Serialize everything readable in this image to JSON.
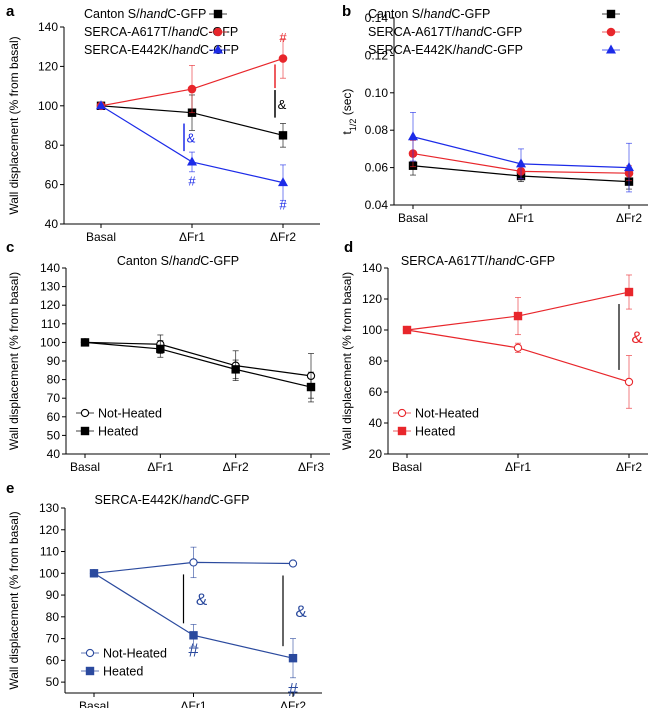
{
  "chart_data": [
    {
      "panel": "a",
      "type": "line",
      "title": "",
      "xlabel": "",
      "ylabel": "Wall displacement (% from basal)",
      "categories": [
        "Basal",
        "ΔFr1",
        "ΔFr2"
      ],
      "ylim": [
        40,
        140
      ],
      "yticks": [
        40,
        60,
        80,
        100,
        120,
        140
      ],
      "legend_position": "top-left",
      "series": [
        {
          "name": "Canton S/handC-GFP",
          "name_pre": "Canton S/",
          "name_em": "hand",
          "name_post": "C-GFP",
          "color": "#000000",
          "marker": "square",
          "values": [
            100,
            96.5,
            85
          ],
          "errors": [
            0,
            9,
            6
          ]
        },
        {
          "name": "SERCA-A617T/handC-GFP",
          "name_pre": "SERCA-A617T/",
          "name_em": "hand",
          "name_post": "C-GFP",
          "color": "#e8262b",
          "marker": "circle",
          "values": [
            100,
            108.5,
            124
          ],
          "errors": [
            0,
            12,
            10
          ]
        },
        {
          "name": "SERCA-E442K/handC-GFP",
          "name_pre": "SERCA-E442K/",
          "name_em": "hand",
          "name_post": "C-GFP",
          "color": "#1c2be8",
          "marker": "triangle",
          "values": [
            100,
            71.5,
            61
          ],
          "errors": [
            0,
            5,
            9
          ]
        }
      ],
      "annotations": [
        {
          "text": "#",
          "color": "#e8262b",
          "category": "ΔFr2",
          "value": 135
        },
        {
          "text": "&",
          "color": "#000000",
          "category": "ΔFr2",
          "value": 101
        },
        {
          "text": "&",
          "color": "#1c2be8",
          "category": "ΔFr1",
          "value": 84
        },
        {
          "text": "#",
          "color": "#1c2be8",
          "category": "ΔFr1",
          "value": 62
        },
        {
          "text": "#",
          "color": "#1c2be8",
          "category": "ΔFr2",
          "value": 50
        }
      ]
    },
    {
      "panel": "b",
      "type": "line",
      "title": "",
      "xlabel": "",
      "ylabel": "t1/2 (sec)",
      "ylabel_main": "t",
      "ylabel_sub": "1/2",
      "ylabel_post": " (sec)",
      "categories": [
        "Basal",
        "ΔFr1",
        "ΔFr2"
      ],
      "ylim": [
        0.04,
        0.14
      ],
      "yticks": [
        0.04,
        0.06,
        0.08,
        0.1,
        0.12,
        0.14
      ],
      "ytick_labels": [
        "0.04",
        "0.06",
        "0.08",
        "0.10",
        "0.12",
        "0.14"
      ],
      "legend_position": "top-right",
      "series": [
        {
          "name": "Canton S/handC-GFP",
          "name_pre": "Canton S/",
          "name_em": "hand",
          "name_post": "C-GFP",
          "color": "#000000",
          "marker": "square",
          "values": [
            0.061,
            0.0555,
            0.0525
          ],
          "errors": [
            0.005,
            0.003,
            0.004
          ]
        },
        {
          "name": "SERCA-A617T/handC-GFP",
          "name_pre": "SERCA-A617T/",
          "name_em": "hand",
          "name_post": "C-GFP",
          "color": "#e8262b",
          "marker": "circle",
          "values": [
            0.0675,
            0.058,
            0.057
          ],
          "errors": [
            0.007,
            0.004,
            0.004
          ]
        },
        {
          "name": "SERCA-E442K/handC-GFP",
          "name_pre": "SERCA-E442K/",
          "name_em": "hand",
          "name_post": "C-GFP",
          "color": "#1c2be8",
          "marker": "triangle",
          "values": [
            0.0765,
            0.062,
            0.06
          ],
          "errors": [
            0.013,
            0.008,
            0.013
          ]
        }
      ]
    },
    {
      "panel": "c",
      "type": "line",
      "title": "Canton S/handC-GFP",
      "title_pre": "Canton S/",
      "title_em": "hand",
      "title_post": "C-GFP",
      "xlabel": "",
      "ylabel": "Wall displacement (% from basal)",
      "categories": [
        "Basal",
        "ΔFr1",
        "ΔFr2",
        "ΔFr3"
      ],
      "ylim": [
        40,
        140
      ],
      "yticks": [
        40,
        50,
        60,
        70,
        80,
        90,
        100,
        110,
        120,
        130,
        140
      ],
      "legend_position": "bottom-left",
      "series": [
        {
          "name": "Not-Heated",
          "color": "#000000",
          "marker": "open-circle",
          "values": [
            100,
            99,
            87.5,
            82
          ],
          "errors": [
            0,
            5,
            8,
            12
          ]
        },
        {
          "name": "Heated",
          "color": "#000000",
          "marker": "square",
          "values": [
            100,
            96.5,
            85.5,
            76
          ],
          "errors": [
            0,
            4.5,
            5,
            8
          ]
        }
      ]
    },
    {
      "panel": "d",
      "type": "line",
      "title": "SERCA-A617T/handC-GFP",
      "title_pre": "SERCA-A617T/",
      "title_em": "hand",
      "title_post": "C-GFP",
      "xlabel": "",
      "ylabel": "Wall displacement (% from basal)",
      "categories": [
        "Basal",
        "ΔFr1",
        "ΔFr2"
      ],
      "ylim": [
        20,
        140
      ],
      "yticks": [
        20,
        40,
        60,
        80,
        100,
        120,
        140
      ],
      "legend_position": "bottom-left",
      "series": [
        {
          "name": "Not-Heated",
          "color": "#e8262b",
          "marker": "open-circle",
          "values": [
            100,
            88.5,
            66.5
          ],
          "errors": [
            0,
            3,
            17
          ]
        },
        {
          "name": "Heated",
          "color": "#e8262b",
          "marker": "square",
          "values": [
            100,
            109,
            124.5
          ],
          "errors": [
            0,
            12,
            11
          ]
        }
      ],
      "annotations": [
        {
          "text": "&",
          "color": "#e8262b",
          "category": "ΔFr2",
          "value": 95
        }
      ]
    },
    {
      "panel": "e",
      "type": "line",
      "title": "SERCA-E442K/handC-GFP",
      "title_pre": "SERCA-E442K/",
      "title_em": "hand",
      "title_post": "C-GFP",
      "xlabel": "",
      "ylabel": "Wall displacement (% from basal)",
      "categories": [
        "Basal",
        "ΔFr1",
        "ΔFr2"
      ],
      "ylim": [
        45,
        130
      ],
      "yticks": [
        50,
        60,
        70,
        80,
        90,
        100,
        110,
        120,
        130
      ],
      "legend_position": "bottom-left",
      "series": [
        {
          "name": "Not-Heated",
          "color": "#2b4a9e",
          "marker": "open-circle",
          "values": [
            100,
            105,
            104.5
          ],
          "errors": [
            0,
            7,
            1
          ]
        },
        {
          "name": "Heated",
          "color": "#2b4a9e",
          "marker": "square",
          "values": [
            100,
            71.5,
            61
          ],
          "errors": [
            0,
            5,
            9
          ]
        }
      ],
      "annotations": [
        {
          "text": "&",
          "color": "#2b4a9e",
          "category": "ΔFr1",
          "value": 89
        },
        {
          "text": "&",
          "color": "#2b4a9e",
          "category": "ΔFr2",
          "value": 83
        },
        {
          "text": "#",
          "color": "#2b4a9e",
          "category": "ΔFr1",
          "value": 64
        },
        {
          "text": "#",
          "color": "#2b4a9e",
          "category": "ΔFr2",
          "value": 46
        }
      ]
    }
  ]
}
